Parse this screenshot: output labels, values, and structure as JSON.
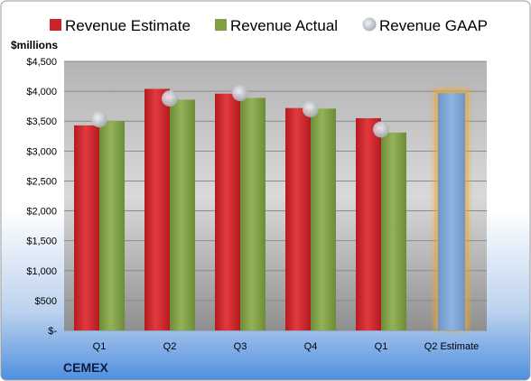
{
  "chart_data": {
    "type": "bar",
    "title": "",
    "company": "CEMEX",
    "ylabel": "$millions",
    "xlabel": "",
    "categories": [
      "Q1",
      "Q2",
      "Q3",
      "Q4",
      "Q1",
      "Q2 Estimate"
    ],
    "ylim": [
      0,
      4500
    ],
    "y_ticks": [
      0,
      500,
      1000,
      1500,
      2000,
      2500,
      3000,
      3500,
      4000,
      4500
    ],
    "y_tick_labels": [
      "$-",
      "$500",
      "$1,000",
      "$1,500",
      "$2,000",
      "$2,500",
      "$3,000",
      "$3,500",
      "$4,000",
      "$4,500"
    ],
    "grid": true,
    "legend_position": "top",
    "series": [
      {
        "name": "Revenue Estimate",
        "kind": "bar",
        "color": "#cc2229",
        "values": [
          3430,
          4040,
          3960,
          3720,
          3550,
          null
        ]
      },
      {
        "name": "Revenue Actual",
        "kind": "bar",
        "color": "#7f9f45",
        "values": [
          3500,
          3860,
          3890,
          3710,
          3310,
          null
        ]
      },
      {
        "name": "Revenue GAAP",
        "kind": "marker",
        "color": "#c0c4cc",
        "values": [
          3530,
          3880,
          3970,
          3700,
          3360,
          null
        ]
      }
    ],
    "estimate_bar": {
      "category": "Q2 Estimate",
      "value": 3970,
      "color": "#7fa6d6",
      "glow_color": "#f5a623"
    }
  }
}
